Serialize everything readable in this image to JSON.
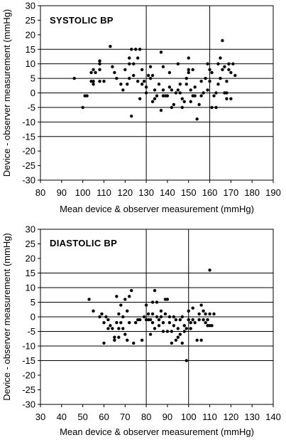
{
  "chart_data": [
    {
      "type": "scatter",
      "title": "SYSTOLIC  BP",
      "xlabel": "Mean device & observer measurement (mmHg)",
      "ylabel": "Device - observer measurement (mmHg)",
      "xlim": [
        80,
        190
      ],
      "ylim": [
        -30,
        30
      ],
      "x_ticks": [
        80,
        90,
        100,
        110,
        120,
        130,
        140,
        150,
        160,
        170,
        180,
        190
      ],
      "y_ticks": [
        30,
        25,
        20,
        15,
        10,
        5,
        0,
        -5,
        -10,
        -15,
        -20,
        -25,
        -30
      ],
      "horizontal_grid": [
        15,
        10,
        5,
        0,
        -5,
        -10,
        -15
      ],
      "vertical_grid": [
        130,
        160
      ],
      "points": [
        [
          96,
          5
        ],
        [
          100,
          -5
        ],
        [
          101,
          -1
        ],
        [
          102,
          -1
        ],
        [
          104,
          4
        ],
        [
          104,
          7
        ],
        [
          105,
          3
        ],
        [
          105,
          4
        ],
        [
          105,
          8
        ],
        [
          106,
          7
        ],
        [
          108,
          10
        ],
        [
          108,
          11
        ],
        [
          108,
          8
        ],
        [
          108,
          4
        ],
        [
          110,
          4
        ],
        [
          113,
          16
        ],
        [
          114,
          9
        ],
        [
          115,
          7
        ],
        [
          116,
          5
        ],
        [
          118,
          3
        ],
        [
          119,
          1
        ],
        [
          120,
          8
        ],
        [
          121,
          3
        ],
        [
          122,
          12
        ],
        [
          122,
          5
        ],
        [
          122,
          10
        ],
        [
          123,
          15
        ],
        [
          123,
          -8
        ],
        [
          124,
          6
        ],
        [
          124,
          10
        ],
        [
          125,
          15
        ],
        [
          126,
          4
        ],
        [
          126,
          12
        ],
        [
          127,
          15
        ],
        [
          127,
          -2
        ],
        [
          128,
          8
        ],
        [
          128,
          3
        ],
        [
          129,
          4
        ],
        [
          130,
          2
        ],
        [
          130,
          0
        ],
        [
          131,
          6
        ],
        [
          132,
          5
        ],
        [
          132,
          9
        ],
        [
          133,
          6
        ],
        [
          133,
          -3
        ],
        [
          134,
          1
        ],
        [
          134,
          -2
        ],
        [
          135,
          -1
        ],
        [
          136,
          3
        ],
        [
          137,
          14
        ],
        [
          137,
          -6
        ],
        [
          138,
          9
        ],
        [
          138,
          1
        ],
        [
          138,
          -1
        ],
        [
          139,
          -1
        ],
        [
          140,
          -1
        ],
        [
          141,
          7
        ],
        [
          141,
          2
        ],
        [
          142,
          1
        ],
        [
          142,
          -5
        ],
        [
          143,
          -4
        ],
        [
          144,
          0
        ],
        [
          145,
          1
        ],
        [
          145,
          10
        ],
        [
          146,
          3
        ],
        [
          146,
          0
        ],
        [
          147,
          -2
        ],
        [
          147,
          -5
        ],
        [
          148,
          -3
        ],
        [
          149,
          3
        ],
        [
          149,
          5
        ],
        [
          150,
          12
        ],
        [
          150,
          7
        ],
        [
          150,
          8
        ],
        [
          151,
          -3
        ],
        [
          151,
          1
        ],
        [
          152,
          -1
        ],
        [
          152,
          8
        ],
        [
          153,
          2
        ],
        [
          153,
          -1
        ],
        [
          154,
          -9
        ],
        [
          155,
          -4
        ],
        [
          156,
          4
        ],
        [
          156,
          -1
        ],
        [
          157,
          0
        ],
        [
          158,
          5
        ],
        [
          159,
          10
        ],
        [
          159,
          1
        ],
        [
          160,
          8
        ],
        [
          160,
          4
        ],
        [
          161,
          -5
        ],
        [
          161,
          7
        ],
        [
          162,
          -1
        ],
        [
          163,
          -5
        ],
        [
          163,
          0
        ],
        [
          164,
          10
        ],
        [
          164,
          3
        ],
        [
          165,
          12
        ],
        [
          165,
          5
        ],
        [
          166,
          18
        ],
        [
          166,
          8
        ],
        [
          167,
          9
        ],
        [
          167,
          0
        ],
        [
          168,
          -2
        ],
        [
          168,
          0
        ],
        [
          168,
          4
        ],
        [
          169,
          10
        ],
        [
          169,
          8
        ],
        [
          170,
          7
        ],
        [
          170,
          -2
        ],
        [
          171,
          10
        ],
        [
          172,
          6
        ]
      ]
    },
    {
      "type": "scatter",
      "title": "DIASTOLIC BP",
      "xlabel": "Mean device & observer measurement (mmHg)",
      "ylabel": "Device - observer measurement (mmHg)",
      "xlim": [
        30,
        140
      ],
      "ylim": [
        -30,
        30
      ],
      "x_ticks": [
        30,
        40,
        50,
        60,
        70,
        80,
        90,
        100,
        110,
        120,
        130,
        140
      ],
      "y_ticks": [
        30,
        25,
        20,
        15,
        10,
        5,
        0,
        -5,
        -10,
        -15,
        -20,
        -25,
        -30
      ],
      "horizontal_grid": [
        15,
        10,
        5,
        0,
        -5,
        -10,
        -15
      ],
      "vertical_grid": [
        80,
        100
      ],
      "points": [
        [
          53,
          6
        ],
        [
          55,
          2
        ],
        [
          58,
          0
        ],
        [
          59,
          1
        ],
        [
          60,
          -2
        ],
        [
          60,
          -9
        ],
        [
          61,
          0
        ],
        [
          62,
          -4
        ],
        [
          62,
          -1
        ],
        [
          63,
          -3
        ],
        [
          64,
          -4
        ],
        [
          65,
          -7
        ],
        [
          65,
          -8
        ],
        [
          66,
          -2
        ],
        [
          66,
          7
        ],
        [
          67,
          1
        ],
        [
          67,
          -7
        ],
        [
          67,
          -4
        ],
        [
          68,
          -2
        ],
        [
          68,
          4
        ],
        [
          69,
          0
        ],
        [
          69,
          -4
        ],
        [
          70,
          -6
        ],
        [
          70,
          6
        ],
        [
          71,
          2
        ],
        [
          71,
          -8
        ],
        [
          72,
          7
        ],
        [
          72,
          -2
        ],
        [
          73,
          9
        ],
        [
          74,
          -9
        ],
        [
          75,
          -2
        ],
        [
          76,
          -1
        ],
        [
          77,
          -1
        ],
        [
          78,
          -8
        ],
        [
          79,
          0
        ],
        [
          80,
          -1
        ],
        [
          80,
          4
        ],
        [
          81,
          -1
        ],
        [
          81,
          1
        ],
        [
          82,
          -6
        ],
        [
          82,
          -1
        ],
        [
          83,
          5
        ],
        [
          83,
          1
        ],
        [
          83,
          -2
        ],
        [
          84,
          -4
        ],
        [
          84,
          9
        ],
        [
          85,
          0
        ],
        [
          85,
          5
        ],
        [
          86,
          -1
        ],
        [
          86,
          -3
        ],
        [
          87,
          0
        ],
        [
          87,
          2
        ],
        [
          88,
          -2
        ],
        [
          88,
          -5
        ],
        [
          89,
          6
        ],
        [
          89,
          1
        ],
        [
          90,
          6
        ],
        [
          90,
          -5
        ],
        [
          91,
          -2
        ],
        [
          91,
          0
        ],
        [
          92,
          -5
        ],
        [
          92,
          -9
        ],
        [
          93,
          0
        ],
        [
          93,
          -3
        ],
        [
          94,
          -1
        ],
        [
          94,
          -8
        ],
        [
          95,
          -4
        ],
        [
          95,
          -7
        ],
        [
          96,
          -6
        ],
        [
          96,
          -1
        ],
        [
          97,
          -9
        ],
        [
          97,
          0
        ],
        [
          98,
          -5
        ],
        [
          98,
          -3
        ],
        [
          99,
          -15
        ],
        [
          99,
          -4
        ],
        [
          100,
          -1
        ],
        [
          100,
          2
        ],
        [
          101,
          -4
        ],
        [
          101,
          -2
        ],
        [
          102,
          3
        ],
        [
          102,
          -1
        ],
        [
          103,
          -2
        ],
        [
          104,
          -8
        ],
        [
          105,
          1
        ],
        [
          105,
          -1
        ],
        [
          106,
          -8
        ],
        [
          106,
          4
        ],
        [
          107,
          2
        ],
        [
          107,
          -1
        ],
        [
          108,
          -2
        ],
        [
          108,
          1
        ],
        [
          109,
          -3
        ],
        [
          109,
          -1
        ],
        [
          110,
          1
        ],
        [
          110,
          -3
        ],
        [
          110,
          16
        ],
        [
          111,
          -3
        ],
        [
          112,
          1
        ]
      ]
    }
  ]
}
